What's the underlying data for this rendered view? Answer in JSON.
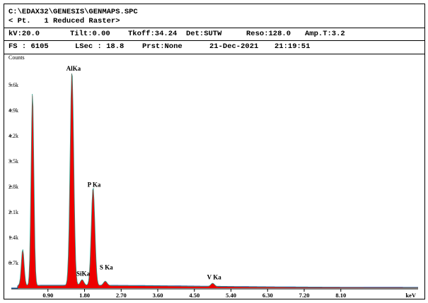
{
  "header": {
    "file_path": "C:\\EDAX32\\GENESIS\\GENMAPS.SPC",
    "subtitle": "< Pt.   1 Reduced Raster>"
  },
  "params_row1": {
    "kv": "kV:20.0",
    "tilt": "Tilt:0.00",
    "takeoff": "Tkoff:34.24",
    "detector": "Det:SUTW",
    "resolution": "Reso:128.0",
    "amp_time": "Amp.T:3.2"
  },
  "params_row2": {
    "fs": "FS : 6105",
    "lsec": "LSec : 18.8",
    "preset": "Prst:None",
    "date": "21-Dec-2021",
    "time": "21:19:51"
  },
  "chart_data": {
    "type": "area",
    "ylabel": "Counts",
    "xlabel": "keV",
    "xlim": [
      0,
      10.0
    ],
    "ylim": [
      0,
      6300
    ],
    "y_ticks": [
      {
        "value": 700,
        "label": "0.7k"
      },
      {
        "value": 1400,
        "label": "1.4k"
      },
      {
        "value": 2100,
        "label": "2.1k"
      },
      {
        "value": 2800,
        "label": "2.8k"
      },
      {
        "value": 3500,
        "label": "3.5k"
      },
      {
        "value": 4200,
        "label": "4.2k"
      },
      {
        "value": 4900,
        "label": "4.9k"
      },
      {
        "value": 5600,
        "label": "5.6k"
      }
    ],
    "x_ticks": [
      {
        "value": 0.9,
        "label": "0.90"
      },
      {
        "value": 1.8,
        "label": "1.80"
      },
      {
        "value": 2.7,
        "label": "2.70"
      },
      {
        "value": 3.6,
        "label": "3.60"
      },
      {
        "value": 4.5,
        "label": "4.50"
      },
      {
        "value": 5.4,
        "label": "5.40"
      },
      {
        "value": 6.3,
        "label": "6.30"
      },
      {
        "value": 7.2,
        "label": "7.20"
      },
      {
        "value": 8.1,
        "label": "8.10"
      }
    ],
    "peaks": [
      {
        "energy": 0.28,
        "counts": 1000
      },
      {
        "energy": 0.52,
        "counts": 5300
      },
      {
        "energy": 1.49,
        "counts": 5900
      },
      {
        "energy": 1.74,
        "counts": 160
      },
      {
        "energy": 2.01,
        "counts": 2700
      },
      {
        "energy": 2.31,
        "counts": 120
      },
      {
        "energy": 4.95,
        "counts": 90
      }
    ],
    "annotations": [
      {
        "text": "AlKa",
        "energy": 1.49,
        "counts": 5950
      },
      {
        "text": "P Ka",
        "energy": 2.01,
        "counts": 2750
      },
      {
        "text": "SiKa",
        "energy": 1.74,
        "counts": 300
      },
      {
        "text": "S Ka",
        "energy": 2.31,
        "counts": 480
      },
      {
        "text": "V Ka",
        "energy": 4.95,
        "counts": 200
      }
    ],
    "colors": {
      "fill": "#ee0000",
      "outline": "#2f9d8a",
      "background": "#1e2bb0"
    }
  }
}
